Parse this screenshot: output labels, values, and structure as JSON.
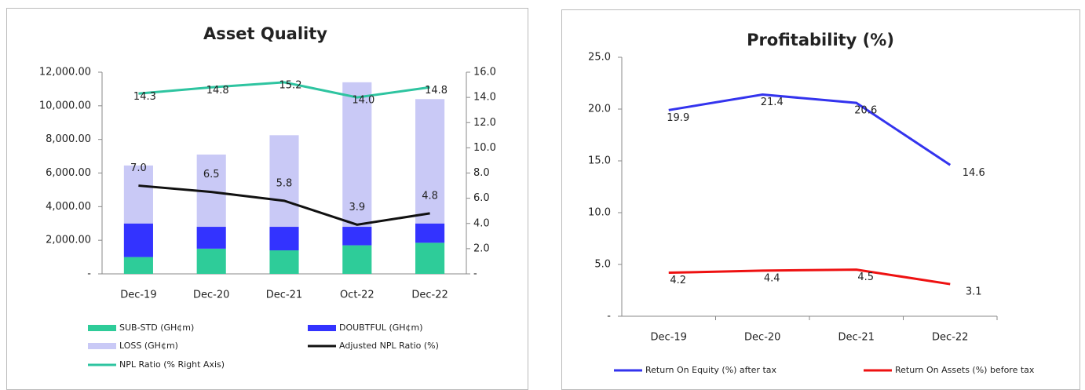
{
  "chart_data": [
    {
      "type": "bar",
      "title": "Asset Quality",
      "stacked": true,
      "categories": [
        "Dec-19",
        "Dec-20",
        "Dec-21",
        "Oct-22",
        "Dec-22"
      ],
      "ylim": [
        0,
        12000
      ],
      "yticks": [
        {
          "value": 0,
          "label": "-"
        },
        {
          "value": 2000,
          "label": "2,000.00"
        },
        {
          "value": 4000,
          "label": "4,000.00"
        },
        {
          "value": 6000,
          "label": "6,000.00"
        },
        {
          "value": 8000,
          "label": "8,000.00"
        },
        {
          "value": 10000,
          "label": "10,000.00"
        },
        {
          "value": 12000,
          "label": "12,000.00"
        }
      ],
      "y2lim": [
        0,
        16
      ],
      "y2ticks": [
        {
          "value": 0,
          "label": "-"
        },
        {
          "value": 2,
          "label": "2.0"
        },
        {
          "value": 4,
          "label": "4.0"
        },
        {
          "value": 6,
          "label": "6.0"
        },
        {
          "value": 8,
          "label": "8.0"
        },
        {
          "value": 10,
          "label": "10.0"
        },
        {
          "value": 12,
          "label": "12.0"
        },
        {
          "value": 14,
          "label": "14.0"
        },
        {
          "value": 16,
          "label": "16.0"
        }
      ],
      "series": [
        {
          "name": "SUB-STD (GH¢m)",
          "type": "bar",
          "color": "#2ecc99",
          "values": [
            1000,
            1500,
            1400,
            1700,
            1850
          ]
        },
        {
          "name": "DOUBTFUL (GH¢m)",
          "type": "bar",
          "color": "#3333ff",
          "values": [
            2000,
            1300,
            1400,
            1100,
            1150
          ]
        },
        {
          "name": "LOSS (GH¢m)",
          "type": "bar",
          "color": "#c9c9f6",
          "values": [
            3450,
            4300,
            5450,
            8600,
            7400
          ]
        },
        {
          "name": "Adjusted NPL Ratio (%)",
          "type": "line",
          "axis": "y2",
          "color": "#111111",
          "values": [
            7.0,
            6.5,
            5.8,
            3.9,
            4.8
          ],
          "value_labels": [
            "7.0",
            "6.5",
            "5.8",
            "3.9",
            "4.8"
          ]
        },
        {
          "name": "NPL Ratio (% Right Axis)",
          "type": "line",
          "axis": "y2",
          "color": "#2ec4a0",
          "values": [
            14.3,
            14.8,
            15.2,
            14.0,
            14.8
          ],
          "value_labels": [
            "14.3",
            "14.8",
            "15.2",
            "14.0",
            "14.8"
          ]
        }
      ]
    },
    {
      "type": "line",
      "title": "Profitability (%)",
      "categories": [
        "Dec-19",
        "Dec-20",
        "Dec-21",
        "Dec-22"
      ],
      "ylim": [
        0,
        25
      ],
      "yticks": [
        {
          "value": 0,
          "label": "-"
        },
        {
          "value": 5,
          "label": "5.0"
        },
        {
          "value": 10,
          "label": "10.0"
        },
        {
          "value": 15,
          "label": "15.0"
        },
        {
          "value": 20,
          "label": "20.0"
        },
        {
          "value": 25,
          "label": "25.0"
        }
      ],
      "series": [
        {
          "name": "Return On Equity (%) after tax",
          "color": "#3333ee",
          "values": [
            19.9,
            21.4,
            20.6,
            14.6
          ],
          "value_labels": [
            "19.9",
            "21.4",
            "20.6",
            "14.6"
          ]
        },
        {
          "name": "Return On Assets (%) before tax",
          "color": "#ee1111",
          "values": [
            4.2,
            4.4,
            4.5,
            3.1
          ],
          "value_labels": [
            "4.2",
            "4.4",
            "4.5",
            "3.1"
          ]
        }
      ]
    }
  ]
}
